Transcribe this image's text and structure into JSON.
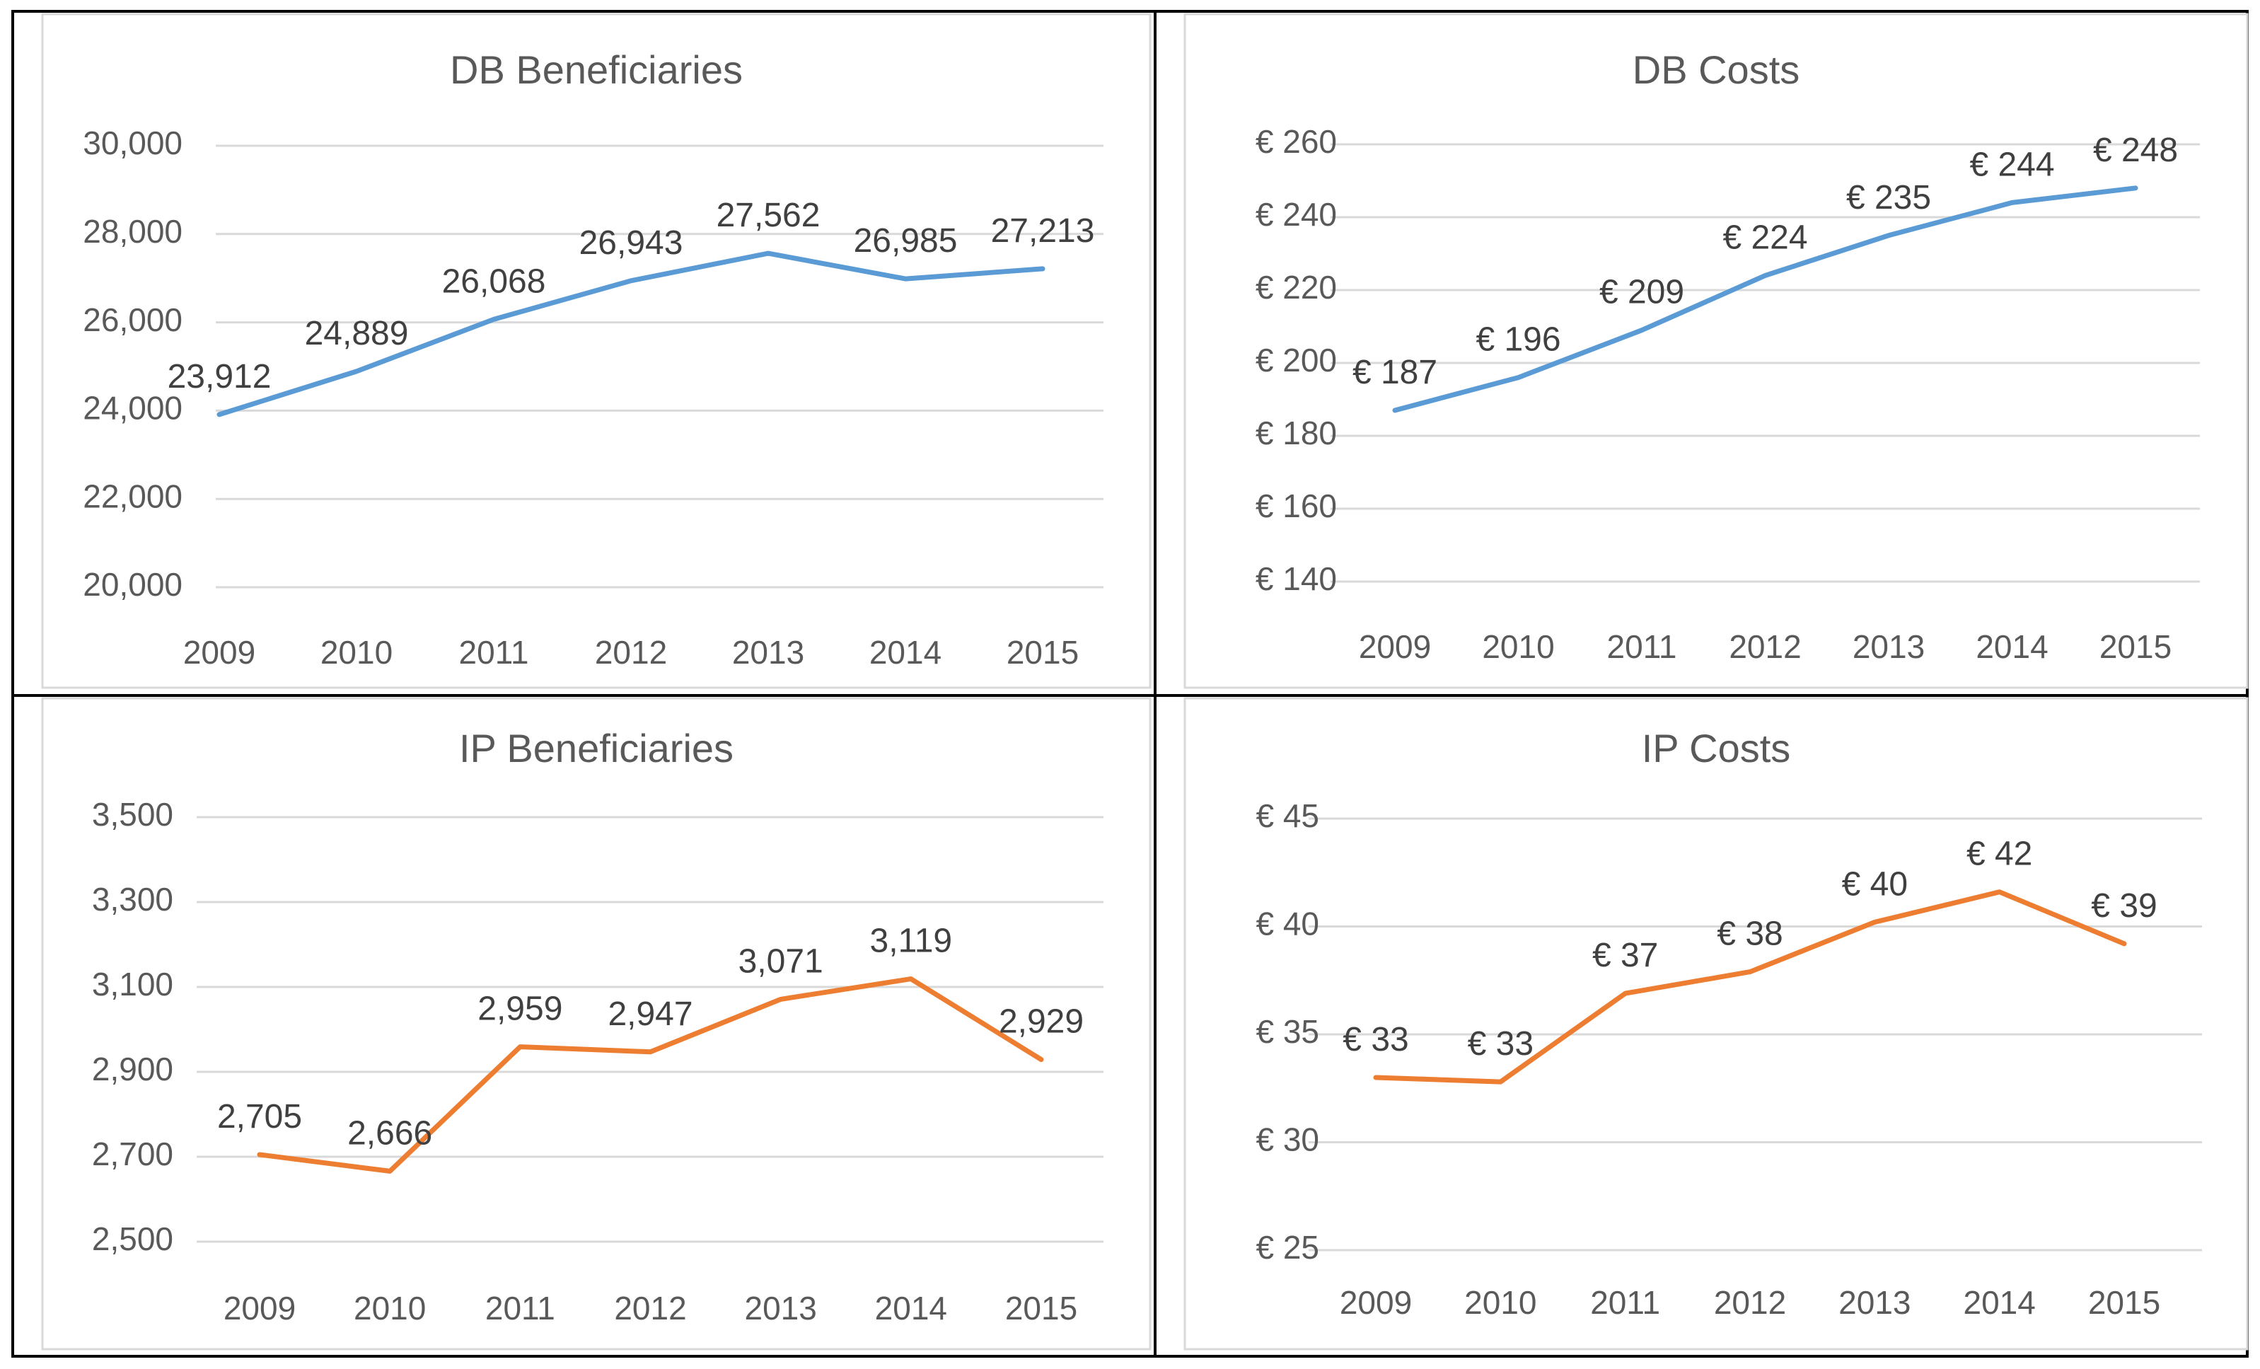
{
  "chart_data": [
    {
      "type": "line",
      "title": "DB Beneficiaries",
      "categories": [
        "2009",
        "2010",
        "2011",
        "2012",
        "2013",
        "2014",
        "2015"
      ],
      "series": [
        {
          "name": "DB Beneficiaries",
          "values": [
            23912,
            24889,
            26068,
            26943,
            27562,
            26985,
            27213
          ],
          "color": "#5b9bd5"
        }
      ],
      "data_labels": [
        "23,912",
        "24,889",
        "26,068",
        "26,943",
        "27,562",
        "26,985",
        "27,213"
      ],
      "ylim": [
        20000,
        30000
      ],
      "y_ticks": [
        20000,
        22000,
        24000,
        26000,
        28000,
        30000
      ],
      "y_tick_labels": [
        "20,000",
        "22,000",
        "24,000",
        "26,000",
        "28,000",
        "30,000"
      ],
      "xlabel": "",
      "ylabel": "",
      "grid": true,
      "legend": "none"
    },
    {
      "type": "line",
      "title": "DB Costs",
      "categories": [
        "2009",
        "2010",
        "2011",
        "2012",
        "2013",
        "2014",
        "2015"
      ],
      "series": [
        {
          "name": "DB Costs",
          "values": [
            187,
            196,
            209,
            224,
            235,
            244,
            248
          ],
          "color": "#5b9bd5"
        }
      ],
      "data_labels": [
        "€ 187",
        "€ 196",
        "€ 209",
        "€ 224",
        "€ 235",
        "€ 244",
        "€ 248"
      ],
      "ylim": [
        140,
        260
      ],
      "y_ticks": [
        140,
        160,
        180,
        200,
        220,
        240,
        260
      ],
      "y_tick_labels": [
        "€ 140",
        "€ 160",
        "€ 180",
        "€ 200",
        "€ 220",
        "€ 240",
        "€ 260"
      ],
      "xlabel": "",
      "ylabel": "",
      "grid": true,
      "legend": "none"
    },
    {
      "type": "line",
      "title": "IP Beneficiaries",
      "categories": [
        "2009",
        "2010",
        "2011",
        "2012",
        "2013",
        "2014",
        "2015"
      ],
      "series": [
        {
          "name": "IP Beneficiaries",
          "values": [
            2705,
            2666,
            2959,
            2947,
            3071,
            3119,
            2929
          ],
          "color": "#ed7d31"
        }
      ],
      "data_labels": [
        "2,705",
        "2,666",
        "2,959",
        "2,947",
        "3,071",
        "3,119",
        "2,929"
      ],
      "ylim": [
        2500,
        3500
      ],
      "y_ticks": [
        2500,
        2700,
        2900,
        3100,
        3300,
        3500
      ],
      "y_tick_labels": [
        "2,500",
        "2,700",
        "2,900",
        "3,100",
        "3,300",
        "3,500"
      ],
      "xlabel": "",
      "ylabel": "",
      "grid": true,
      "legend": "none"
    },
    {
      "type": "line",
      "title": "IP Costs",
      "categories": [
        "2009",
        "2010",
        "2011",
        "2012",
        "2013",
        "2014",
        "2015"
      ],
      "series": [
        {
          "name": "IP Costs",
          "values": [
            33,
            32.8,
            36.9,
            37.9,
            40.2,
            41.6,
            39.2
          ],
          "color": "#ed7d31"
        }
      ],
      "data_labels": [
        "€ 33",
        "€ 33",
        "€ 37",
        "€ 38",
        "€ 40",
        "€ 42",
        "€ 39"
      ],
      "ylim": [
        25,
        45
      ],
      "y_ticks": [
        25,
        30,
        35,
        40,
        45
      ],
      "y_tick_labels": [
        "€ 25",
        "€ 30",
        "€ 35",
        "€ 40",
        "€ 45"
      ],
      "xlabel": "",
      "ylabel": "",
      "grid": true,
      "legend": "none"
    }
  ]
}
